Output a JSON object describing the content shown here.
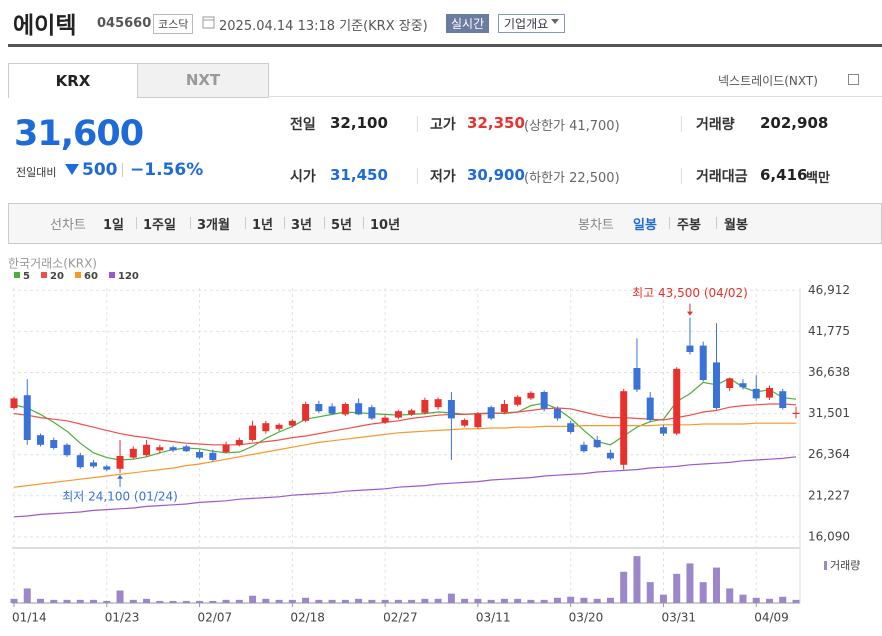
{
  "header": {
    "name": "에이텍",
    "code": "045660",
    "market": "코스닥",
    "timestamp": "2025.04.14 13:18 기준(KRX 장중)",
    "realtime": "실시간",
    "company_info": "기업개요"
  },
  "tabs": [
    "KRX",
    "NXT"
  ],
  "nxt_link": "넥스트레이드(NXT)",
  "price": {
    "current": "31,600",
    "change_label": "전일대비",
    "change": "500",
    "change_rate": "−1.56%"
  },
  "stats": [
    [
      {
        "label": "전일",
        "value": "32,100"
      },
      {
        "label": "고가",
        "value": "32,350",
        "limit": "(상한가 41,700)"
      },
      {
        "label": "거래량",
        "value": "202,908"
      }
    ],
    [
      {
        "label": "시가",
        "value": "31,450"
      },
      {
        "label": "저가",
        "value": "30,900",
        "limit": "(하한가 22,500)"
      },
      {
        "label": "거래대금",
        "value": "6,416",
        "unit": "백만"
      }
    ]
  ],
  "periods": {
    "line_label": "선차트",
    "line": [
      "1일",
      "1주일",
      "3개월",
      "1년",
      "3년",
      "5년",
      "10년"
    ],
    "candle_label": "봉차트",
    "candle": [
      "일봉",
      "주봉",
      "월봉"
    ],
    "candle_selected": 0
  },
  "chart_data": {
    "type": "candlestick",
    "source": "한국거래소(KRX)",
    "categories": [
      "01/14",
      null,
      null,
      null,
      null,
      null,
      null,
      "01/23",
      null,
      null,
      null,
      null,
      null,
      null,
      "02/07",
      null,
      null,
      null,
      null,
      null,
      null,
      "02/18",
      null,
      null,
      null,
      null,
      null,
      null,
      "02/27",
      null,
      null,
      null,
      null,
      null,
      null,
      "03/11",
      null,
      null,
      null,
      null,
      null,
      null,
      "03/20",
      null,
      null,
      null,
      null,
      null,
      null,
      "03/31",
      null,
      null,
      null,
      null,
      null,
      null,
      "04/09",
      null,
      null,
      null
    ],
    "ylim": [
      14700,
      47200
    ],
    "yticks": [
      {
        "value": 46912,
        "label": "46,912"
      },
      {
        "value": 41775,
        "label": "41,775"
      },
      {
        "value": 36638,
        "label": "36,638"
      },
      {
        "value": 31501,
        "label": "31,501"
      },
      {
        "value": 26364,
        "label": "26,364"
      },
      {
        "value": 21227,
        "label": "21,227"
      },
      {
        "value": 16090,
        "label": "16,090"
      }
    ],
    "grid": true,
    "up_color": "#e8312c",
    "down_color": "#3a72d8",
    "open": [
      32200,
      33800,
      28800,
      28200,
      27600,
      26300,
      25400,
      24900,
      24600,
      26000,
      26300,
      26900,
      27300,
      27400,
      26700,
      26600,
      26700,
      27600,
      28200,
      29300,
      29600,
      30000,
      30600,
      32700,
      32400,
      31400,
      32800,
      32300,
      30400,
      31000,
      31400,
      31600,
      32300,
      33200,
      30000,
      29800,
      32300,
      31700,
      32600,
      33400,
      34200,
      32100,
      30300,
      27600,
      28200,
      26600,
      25100,
      37200,
      33500,
      29800,
      29000,
      40000,
      40000,
      37900,
      34700,
      35300,
      34600,
      33500,
      34300,
      31450
    ],
    "high": [
      33600,
      35800,
      29000,
      28500,
      27800,
      26600,
      25700,
      25100,
      28200,
      27400,
      28200,
      27600,
      27500,
      27600,
      27000,
      27000,
      28000,
      28500,
      30600,
      30600,
      30300,
      30800,
      33000,
      33100,
      32800,
      32900,
      33400,
      32600,
      31300,
      32000,
      32100,
      33500,
      33500,
      34200,
      30900,
      31700,
      32500,
      33200,
      33800,
      34300,
      34400,
      32400,
      30600,
      28000,
      28700,
      27000,
      34600,
      40900,
      34200,
      30100,
      37300,
      43500,
      40500,
      42800,
      36000,
      35800,
      36300,
      35000,
      34600,
      32350
    ],
    "low": [
      32000,
      27600,
      27400,
      27000,
      26100,
      24600,
      24700,
      24300,
      24100,
      25800,
      26100,
      26500,
      26700,
      26700,
      25800,
      25500,
      26500,
      27400,
      28000,
      29000,
      29300,
      29800,
      30400,
      31600,
      31300,
      31200,
      31300,
      30700,
      30200,
      30800,
      31200,
      31400,
      32000,
      25700,
      29800,
      29600,
      30700,
      31500,
      32400,
      33200,
      31800,
      30600,
      29000,
      26600,
      27200,
      25700,
      24500,
      34200,
      30400,
      28700,
      28800,
      38900,
      35500,
      32000,
      34300,
      34500,
      33100,
      33200,
      32000,
      30900
    ],
    "close": [
      33400,
      28200,
      27600,
      27200,
      26300,
      24800,
      24900,
      24500,
      26200,
      27100,
      27600,
      27300,
      26900,
      26800,
      26000,
      25700,
      27600,
      28200,
      30000,
      30300,
      30100,
      30600,
      32700,
      31800,
      31500,
      32700,
      31400,
      30900,
      31000,
      31800,
      31900,
      33200,
      33300,
      30900,
      30700,
      31500,
      30900,
      32700,
      33600,
      34100,
      32100,
      30900,
      29200,
      26800,
      27300,
      25900,
      34300,
      34500,
      30700,
      29000,
      37100,
      39200,
      35700,
      32200,
      35900,
      34800,
      33400,
      34700,
      32200,
      31600
    ],
    "moving_averages": [
      {
        "name": "5",
        "color": "#4caf3a",
        "values": [
          32600,
          32200,
          31400,
          30400,
          29300,
          27800,
          26600,
          26000,
          25700,
          25800,
          26100,
          26600,
          27000,
          27200,
          27100,
          26800,
          26600,
          26700,
          27400,
          28400,
          29200,
          29900,
          30800,
          31100,
          31400,
          31700,
          31600,
          31500,
          31400,
          31300,
          31400,
          31500,
          31700,
          31600,
          31400,
          31500,
          31600,
          31500,
          31700,
          32500,
          32800,
          32100,
          30900,
          29400,
          28000,
          27600,
          28700,
          29800,
          30500,
          30800,
          33000,
          34000,
          35400,
          35100,
          35900,
          34800,
          34200,
          34500,
          33500,
          33300
        ]
      },
      {
        "name": "20",
        "color": "#f0504a",
        "values": [
          31500,
          31300,
          31000,
          30800,
          30600,
          30200,
          29800,
          29400,
          29000,
          28700,
          28500,
          28200,
          28000,
          27800,
          27700,
          27600,
          27600,
          27600,
          27800,
          28000,
          28200,
          28500,
          28700,
          29000,
          29300,
          29600,
          29900,
          30200,
          30400,
          30600,
          30900,
          31100,
          31300,
          31400,
          31400,
          31500,
          31500,
          31600,
          31700,
          31900,
          32100,
          32200,
          32100,
          31700,
          31300,
          31000,
          31000,
          30900,
          30800,
          30700,
          31000,
          31300,
          31700,
          31900,
          32300,
          32500,
          32600,
          32700,
          32700,
          32600
        ]
      },
      {
        "name": "60",
        "color": "#f59a2a",
        "values": [
          22300,
          22500,
          22700,
          22900,
          23100,
          23300,
          23500,
          23700,
          23900,
          24100,
          24300,
          24500,
          24700,
          25000,
          25200,
          25500,
          25800,
          26100,
          26400,
          26700,
          27000,
          27300,
          27600,
          27900,
          28100,
          28300,
          28500,
          28700,
          28900,
          29100,
          29200,
          29300,
          29400,
          29500,
          29600,
          29600,
          29700,
          29700,
          29800,
          29800,
          29900,
          29900,
          29900,
          30000,
          30000,
          30000,
          30000,
          30000,
          30000,
          30100,
          30100,
          30100,
          30200,
          30200,
          30200,
          30200,
          30300,
          30300,
          30300,
          30300
        ]
      },
      {
        "name": "120",
        "color": "#9b59d0",
        "values": [
          18600,
          18700,
          18900,
          19000,
          19100,
          19200,
          19400,
          19500,
          19600,
          19700,
          19900,
          20000,
          20100,
          20200,
          20400,
          20500,
          20600,
          20800,
          20900,
          21000,
          21100,
          21300,
          21400,
          21500,
          21600,
          21800,
          21900,
          22000,
          22100,
          22300,
          22400,
          22500,
          22700,
          22800,
          22900,
          23000,
          23200,
          23300,
          23400,
          23500,
          23700,
          23800,
          23900,
          24000,
          24200,
          24300,
          24400,
          24500,
          24700,
          24800,
          24900,
          25100,
          25200,
          25300,
          25400,
          25600,
          25700,
          25800,
          25900,
          26100
        ]
      }
    ],
    "annotations": [
      {
        "text": "최고 43,500 (04/02)",
        "value": 43500,
        "kind": "high",
        "color": "#e8312c"
      },
      {
        "text": "최저 24,100 (01/24)",
        "value": 24100,
        "kind": "low",
        "color": "#3a72d8"
      }
    ],
    "volume": {
      "name": "거래량",
      "color": "#9b87c9",
      "ylim": [
        0,
        4800000
      ],
      "values": [
        400000,
        1400000,
        400000,
        300000,
        300000,
        300000,
        300000,
        200000,
        1200000,
        300000,
        400000,
        200000,
        200000,
        200000,
        200000,
        200000,
        300000,
        300000,
        700000,
        400000,
        300000,
        300000,
        500000,
        300000,
        300000,
        300000,
        400000,
        300000,
        300000,
        300000,
        300000,
        400000,
        400000,
        900000,
        400000,
        400000,
        300000,
        400000,
        400000,
        300000,
        300000,
        500000,
        600000,
        500000,
        400000,
        500000,
        3000000,
        4500000,
        2000000,
        800000,
        2800000,
        3800000,
        2000000,
        3400000,
        1400000,
        800000,
        500000,
        400000,
        600000,
        300000
      ]
    }
  }
}
